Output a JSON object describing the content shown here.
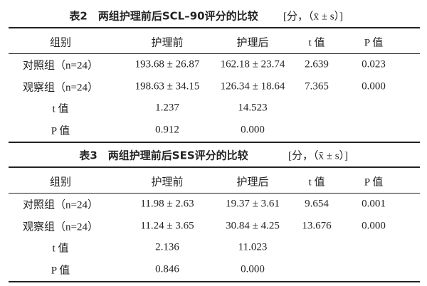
{
  "tables": [
    {
      "title": "表2　两组护理前后SCL–90评分的比较",
      "unit": "[分，（x̄ ± s）]",
      "header": [
        "组别",
        "护理前",
        "护理后",
        "t 值",
        "P 值"
      ],
      "rows": [
        [
          "对照组（n=24）",
          "193.68 ± 26.87",
          "162.18 ± 23.74",
          "2.639",
          "0.023"
        ],
        [
          "观察组（n=24）",
          "198.63 ± 34.15",
          "126.34 ± 18.64",
          "7.365",
          "0.000"
        ],
        [
          "t 值",
          "1.237",
          "14.523",
          "",
          ""
        ],
        [
          "P 值",
          "0.912",
          "0.000",
          "",
          ""
        ]
      ]
    },
    {
      "title": "表3　两组护理前后SES评分的比较",
      "unit": "[分，（x̄ ± s）]",
      "header": [
        "组别",
        "护理前",
        "护理后",
        "t 值",
        "P 值"
      ],
      "rows": [
        [
          "对照组（n=24）",
          "11.98 ± 2.63",
          "19.37 ± 3.61",
          "9.654",
          "0.001"
        ],
        [
          "观察组（n=24）",
          "11.24 ± 3.65",
          "30.84 ± 4.25",
          "13.676",
          "0.000"
        ],
        [
          "t 值",
          "2.136",
          "11.023",
          "",
          ""
        ],
        [
          "P 值",
          "0.846",
          "0.000",
          "",
          ""
        ]
      ]
    }
  ]
}
